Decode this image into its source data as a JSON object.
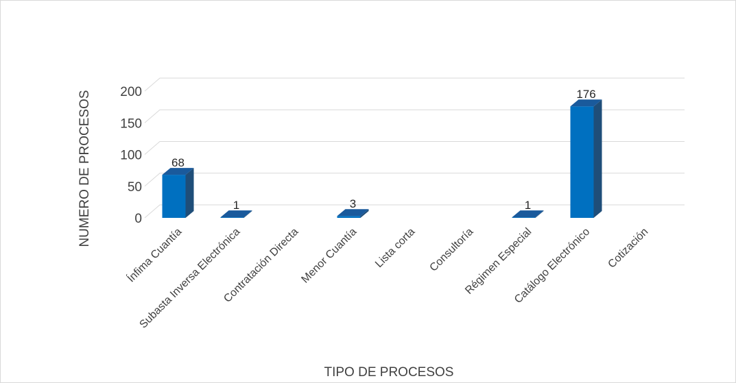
{
  "chart_data": {
    "type": "bar",
    "style": "3d-column",
    "title": "",
    "xlabel": "TIPO DE PROCESOS",
    "ylabel": "NUMERO DE PROCESOS",
    "categories": [
      "Ínfima Cuantía",
      "Subasta Inversa Electrónica",
      "Contratación Directa",
      "Menor Cuantía",
      "Lista corta",
      "Consultoría",
      "Régimen Especial",
      "Catálogo Electrónico",
      "Cotización"
    ],
    "values": [
      68,
      1,
      0,
      3,
      0,
      0,
      1,
      176,
      0
    ],
    "data_labels": [
      "68",
      "1",
      "",
      "3",
      "",
      "",
      "1",
      "176",
      ""
    ],
    "ylim": [
      0,
      200
    ],
    "yticks": [
      0,
      50,
      100,
      150,
      200
    ],
    "grid": true,
    "legend": "none",
    "colors": {
      "bar_front": "#0070c0",
      "bar_side": "#1f4e79",
      "bar_top": "#1a5a9c",
      "grid": "#d9d9d9"
    }
  }
}
